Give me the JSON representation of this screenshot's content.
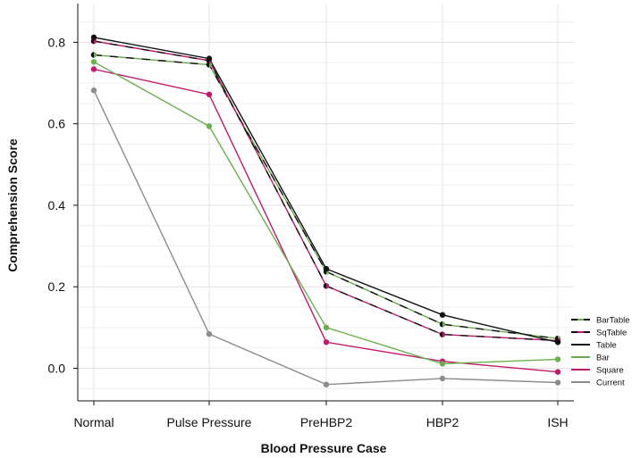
{
  "chart_data": {
    "type": "line",
    "title": "",
    "xlabel": "Blood Pressure Case",
    "ylabel": "Comprehension Score",
    "categories": [
      "Normal",
      "Pulse Pressure",
      "PreHBP2",
      "HBP2",
      "ISH"
    ],
    "ylim": [
      -0.08,
      0.895
    ],
    "yticks": [
      0.0,
      0.2,
      0.4,
      0.6,
      0.8
    ],
    "ytick_labels": [
      "0.0",
      "0.2",
      "0.4",
      "0.6",
      "0.8"
    ],
    "grid": true,
    "legend_position": "bottom-right",
    "series": [
      {
        "name": "BarTable",
        "color": "#6ab04c",
        "dash_color": "#111111",
        "values": [
          0.769,
          0.745,
          0.237,
          0.108,
          0.073
        ]
      },
      {
        "name": "SqTable",
        "color": "#c2186b",
        "dash_color": "#111111",
        "values": [
          0.803,
          0.755,
          0.202,
          0.083,
          0.068
        ]
      },
      {
        "name": "Table",
        "color": "#111111",
        "values": [
          0.812,
          0.76,
          0.244,
          0.131,
          0.064
        ]
      },
      {
        "name": "Bar",
        "color": "#6ab04c",
        "values": [
          0.752,
          0.594,
          0.1,
          0.011,
          0.022
        ]
      },
      {
        "name": "Square",
        "color": "#c2186b",
        "values": [
          0.734,
          0.672,
          0.064,
          0.017,
          -0.009
        ]
      },
      {
        "name": "Current",
        "color": "#8c8c8c",
        "values": [
          0.682,
          0.084,
          -0.04,
          -0.025,
          -0.035
        ]
      }
    ]
  }
}
